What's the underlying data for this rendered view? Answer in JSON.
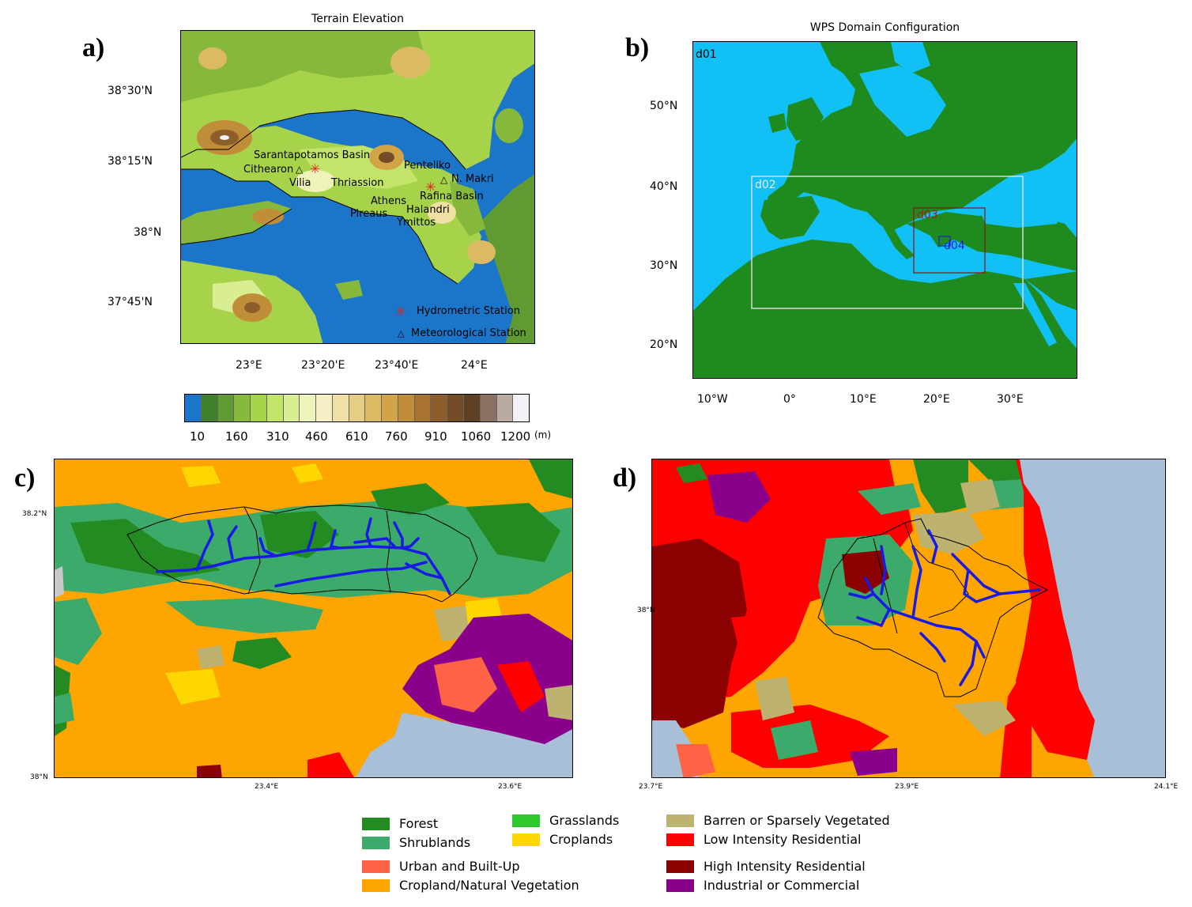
{
  "panels": {
    "a": {
      "letter": "a)",
      "title": "Terrain Elevation",
      "lat_ticks": [
        "38°30'N",
        "38°15'N",
        "38°N",
        "37°45'N"
      ],
      "lon_ticks": [
        "23°E",
        "23°20'E",
        "23°40'E",
        "24°E"
      ],
      "place_labels": {
        "sarantapotamos": "Sarantapotamos Basin",
        "cithearon": "Cithearon",
        "vilia": "Vilia",
        "thriassion": "Thriassion",
        "penteliko": "Penteliko",
        "nmakri": "N. Makri",
        "rafina": "Rafina Basin",
        "athens": "Athens",
        "pireaus": "Pireaus",
        "halandri": "Halandri",
        "ymittos": "Ymittos"
      },
      "legend": {
        "hydrometric": "Hydrometric Station",
        "meteorological": "Meteorological Station"
      },
      "colorbar": {
        "labels": [
          "10",
          "160",
          "310",
          "460",
          "610",
          "760",
          "910",
          "1060",
          "1200"
        ],
        "unit": "(m)",
        "colors": [
          "#1b75c9",
          "#3f7f2a",
          "#5f9a32",
          "#86b83b",
          "#a6d34a",
          "#c3e46a",
          "#d9ee93",
          "#eef4b9",
          "#f4efc4",
          "#efe0a4",
          "#e6cd84",
          "#dbba63",
          "#d0a447",
          "#c08d39",
          "#a87331",
          "#8d5d2a",
          "#744c25",
          "#5f3f22",
          "#8a7163",
          "#b9aaa2",
          "#f2f2f7"
        ]
      }
    },
    "b": {
      "letter": "b)",
      "title": "WPS Domain Configuration",
      "lat_ticks": [
        "50°N",
        "40°N",
        "30°N",
        "20°N"
      ],
      "lon_ticks": [
        "10°W",
        "0°",
        "10°E",
        "20°E",
        "30°E"
      ],
      "domains": [
        "d01",
        "d02",
        "d03",
        "d04"
      ]
    },
    "c": {
      "letter": "c)",
      "lat_ticks": [
        "38.2°N",
        "38°N"
      ],
      "lon_ticks": [
        "23.4°E",
        "23.6°E"
      ]
    },
    "d": {
      "letter": "d)",
      "lat_ticks": [
        "38°N"
      ],
      "lon_ticks": [
        "23.7°E",
        "23.9°E",
        "24.1°E"
      ]
    }
  },
  "landuse_legend": [
    {
      "label": "Forest",
      "color": "#238b22"
    },
    {
      "label": "Shrublands",
      "color": "#3caa6a"
    },
    {
      "label": "Grasslands",
      "color": "#2ec82e"
    },
    {
      "label": "Croplands",
      "color": "#ffd700"
    },
    {
      "label": "Barren or Sparsely Vegetated",
      "color": "#bdb26f"
    },
    {
      "label": "Low Intensity Residential",
      "color": "#ff0000"
    },
    {
      "label": "Urban and Built-Up",
      "color": "#ff6347"
    },
    {
      "label": "Cropland/Natural Vegetation",
      "color": "#ffa500"
    },
    {
      "label": "High Intensity Residential",
      "color": "#8b0000"
    },
    {
      "label": "Industrial or Commercial",
      "color": "#8b008b"
    }
  ]
}
